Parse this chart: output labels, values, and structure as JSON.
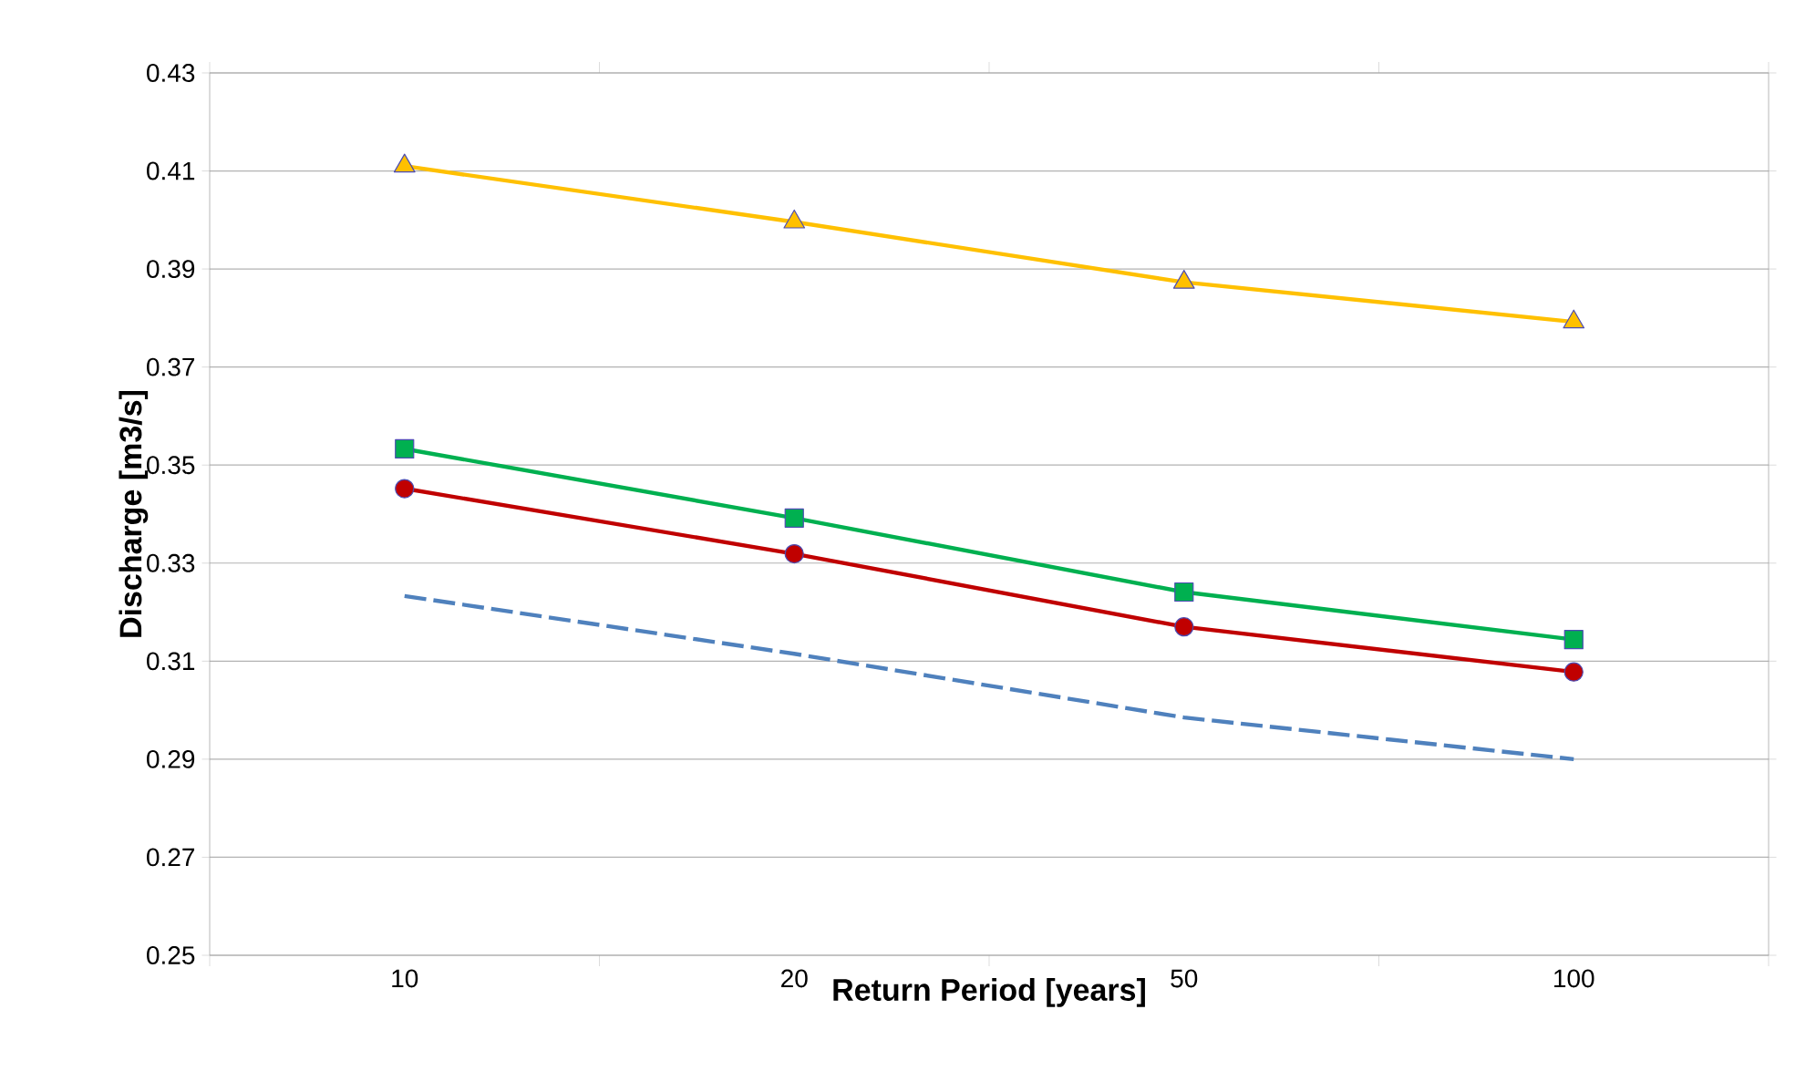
{
  "chart_data": {
    "type": "line",
    "xlabel": "Return Period [years]",
    "ylabel": "Discharge [m3/s]",
    "categories": [
      "10",
      "20",
      "50",
      "100"
    ],
    "ylim": [
      0.25,
      0.43
    ],
    "yticks": [
      0.25,
      0.27,
      0.29,
      0.31,
      0.33,
      0.35,
      0.37,
      0.39,
      0.41,
      0.43
    ],
    "grid": "y",
    "series": [
      {
        "color": "#ffc000",
        "marker": "triangle",
        "line_style": "solid",
        "values": [
          0.411,
          0.3996,
          0.3873,
          0.3792
        ]
      },
      {
        "color": "#00b050",
        "marker": "square",
        "line_style": "solid",
        "values": [
          0.3533,
          0.3392,
          0.3241,
          0.3144
        ]
      },
      {
        "color": "#c00000",
        "marker": "circle",
        "line_style": "solid",
        "values": [
          0.3452,
          0.3319,
          0.317,
          0.3078
        ]
      },
      {
        "color": "#4f81bd",
        "marker": "none",
        "line_style": "dashed",
        "values": [
          0.3233,
          0.3115,
          0.2985,
          0.29
        ]
      }
    ]
  }
}
